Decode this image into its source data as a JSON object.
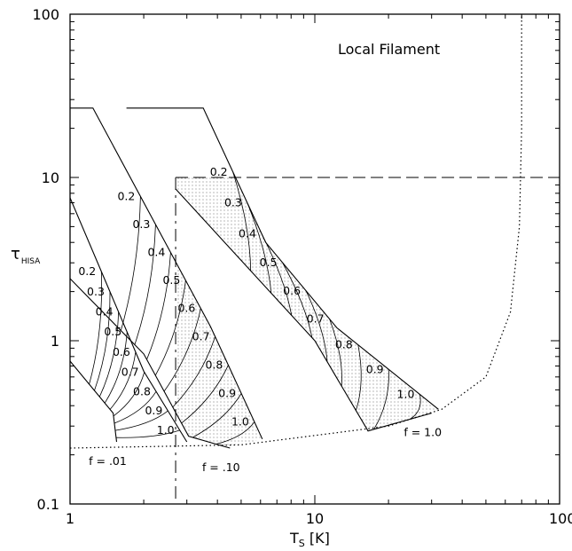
{
  "chart_data": {
    "type": "line",
    "title": "Local Filament",
    "xlabel_main": "T",
    "xlabel_sub": "S",
    "xlabel_unit": " [K]",
    "ylabel_main": "τ",
    "ylabel_sub": "HISA",
    "x_scale": "log",
    "y_scale": "log",
    "xlim": [
      1,
      100
    ],
    "ylim": [
      0.1,
      100
    ],
    "x_tick_labels": [
      {
        "value": 1,
        "label": "1"
      },
      {
        "value": 10,
        "label": "10"
      },
      {
        "value": 100,
        "label": "100"
      }
    ],
    "y_tick_labels": [
      {
        "value": 0.1,
        "label": "0.1"
      },
      {
        "value": 1,
        "label": "1"
      },
      {
        "value": 10,
        "label": "10"
      },
      {
        "value": 100,
        "label": "100"
      }
    ],
    "grid": false,
    "limits": {
      "ts_min_dashed": 2.7,
      "tau_max_dashed": 10,
      "ts_asymptote_dotted": 70
    },
    "bands": [
      {
        "f_label": "f = .01",
        "upper_edge": [
          [
            1.0,
            7.5
          ],
          [
            2.0,
            0.65
          ],
          [
            3.0,
            0.24
          ]
        ],
        "lower_edge": [
          [
            1.0,
            0.75
          ],
          [
            1.5,
            0.36
          ],
          [
            1.55,
            0.24
          ]
        ],
        "tau_levels": [
          "0.2",
          "0.3",
          "0.4",
          "0.5",
          "0.6",
          "0.7",
          "0.8",
          "0.9",
          "1.0"
        ]
      },
      {
        "f_label": "f = .10",
        "upper_edge": [
          [
            1.0,
            26.6
          ],
          [
            1.24,
            26.6
          ],
          [
            3.75,
            1.22
          ],
          [
            6.1,
            0.25
          ]
        ],
        "lower_edge": [
          [
            1.0,
            2.4
          ],
          [
            2.0,
            0.83
          ],
          [
            3.05,
            0.26
          ],
          [
            4.5,
            0.22
          ]
        ],
        "tau_levels": [
          "0.2",
          "0.3",
          "0.4",
          "0.5",
          "0.6",
          "0.7",
          "0.8",
          "0.9",
          "1.0"
        ]
      },
      {
        "f_label": "f = 1.0",
        "upper_edge": [
          [
            1.7,
            26.6
          ],
          [
            3.5,
            26.6
          ],
          [
            6.3,
            4.0
          ],
          [
            12.3,
            1.2
          ],
          [
            32,
            0.38
          ]
        ],
        "lower_edge": [
          [
            2.7,
            8.5
          ],
          [
            10,
            1.0
          ],
          [
            16.5,
            0.28
          ],
          [
            30,
            0.36
          ]
        ],
        "tau_levels": [
          "0.2",
          "0.3",
          "0.4",
          "0.5",
          "0.6",
          "0.7",
          "0.8",
          "0.9",
          "1.0"
        ]
      }
    ],
    "shaded_region": {
      "ts_min": 2.7,
      "tau_max": 10
    },
    "outer_envelope_dotted": [
      [
        1.0,
        0.22
      ],
      [
        5,
        0.23
      ],
      [
        20,
        0.3
      ],
      [
        33,
        0.38
      ],
      [
        50,
        0.6
      ],
      [
        63,
        1.5
      ],
      [
        68.5,
        5
      ],
      [
        70,
        20
      ],
      [
        70,
        100
      ]
    ]
  }
}
